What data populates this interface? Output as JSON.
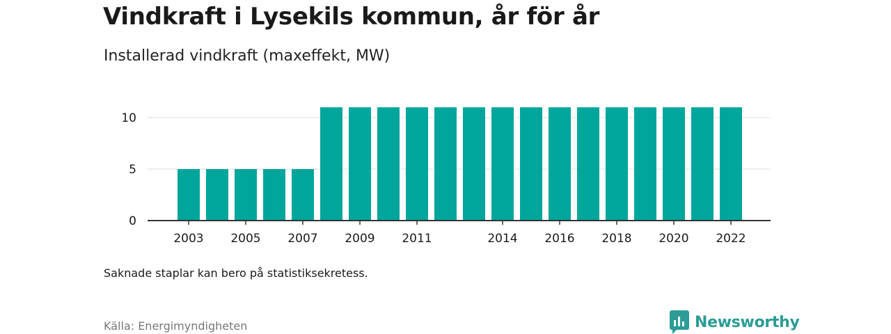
{
  "header": {
    "title": "Vindkraft i Lysekils kommun, år för år",
    "subtitle": "Installerad vindkraft (maxeffekt, MW)"
  },
  "footer": {
    "note": "Saknade staplar kan bero på statistiksekretess.",
    "source": "Källa: Energimyndigheten",
    "brand": "Newsworthy"
  },
  "colors": {
    "bar": "#00a69c",
    "gridline": "#dddddd",
    "axis": "#333333",
    "brand": "#2b9c96"
  },
  "chart_data": {
    "type": "bar",
    "title": "Vindkraft i Lysekils kommun, år för år",
    "subtitle": "Installerad vindkraft (maxeffekt, MW)",
    "xlabel": "",
    "ylabel": "",
    "categories": [
      "2003",
      "2004",
      "2005",
      "2006",
      "2007",
      "2008",
      "2009",
      "2010",
      "2011",
      "2012",
      "2013",
      "2014",
      "2015",
      "2016",
      "2017",
      "2018",
      "2019",
      "2020",
      "2021",
      "2022"
    ],
    "values": [
      5,
      5,
      5,
      5,
      5,
      11,
      11,
      11,
      11,
      11,
      11,
      11,
      11,
      11,
      11,
      11,
      11,
      11,
      11,
      11
    ],
    "x_tick_labels": [
      "2003",
      "2005",
      "2007",
      "2009",
      "2011",
      "2014",
      "2016",
      "2018",
      "2020",
      "2022"
    ],
    "y_ticks": [
      0,
      5,
      10
    ],
    "ylim": [
      0,
      10.1
    ],
    "grid": true,
    "legend": "none"
  }
}
